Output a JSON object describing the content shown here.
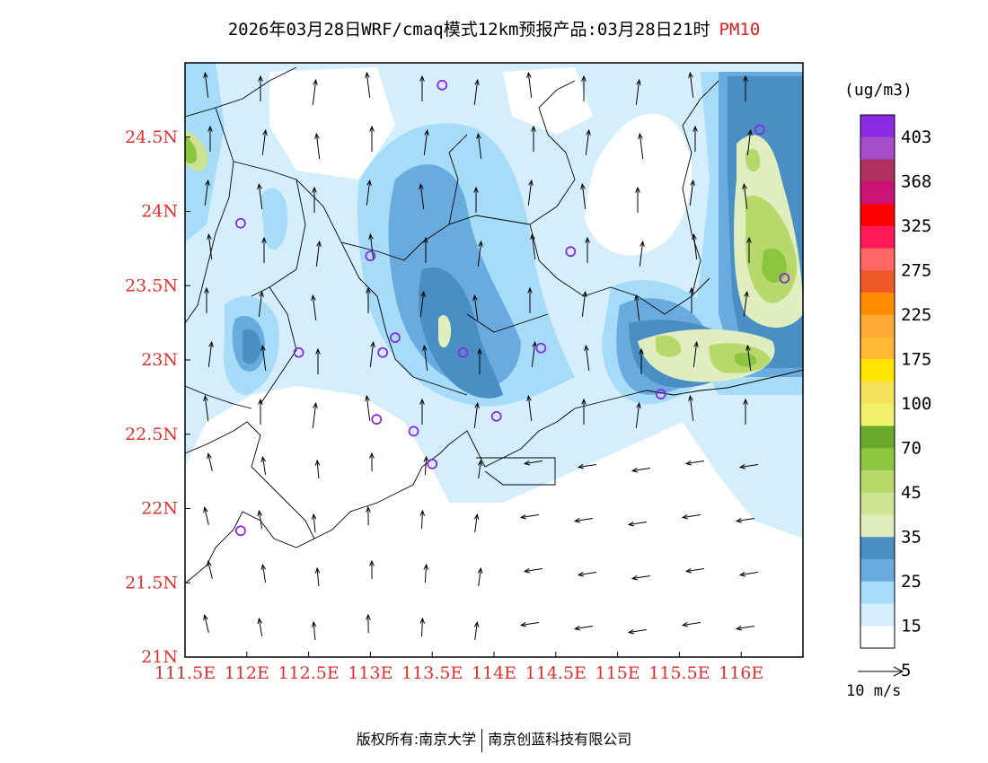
{
  "title": {
    "text": "2026年03月28日WRF/cmaq模式12km预报产品:03月28日21时",
    "pollutant": "PM10"
  },
  "colors": {
    "axis_label": "#e03030",
    "pollutant": "#e02020",
    "boundary": "#000000"
  },
  "map": {
    "x_ticks": [
      "111.5E",
      "112E",
      "112.5E",
      "113E",
      "113.5E",
      "114E",
      "114.5E",
      "115E",
      "115.5E",
      "116E"
    ],
    "y_ticks": [
      "21N",
      "21.5N",
      "22N",
      "22.5N",
      "23N",
      "23.5N",
      "24N",
      "24.5N"
    ],
    "lon_range": [
      111.5,
      116.5
    ],
    "lat_range": [
      21.0,
      25.0
    ],
    "stations": [
      [
        113.58,
        24.85
      ],
      [
        111.95,
        23.92
      ],
      [
        112.42,
        23.05
      ],
      [
        113.0,
        23.7
      ],
      [
        113.2,
        23.15
      ],
      [
        113.1,
        23.05
      ],
      [
        113.75,
        23.05
      ],
      [
        113.05,
        22.6
      ],
      [
        113.35,
        22.52
      ],
      [
        113.5,
        22.3
      ],
      [
        114.02,
        22.62
      ],
      [
        114.38,
        23.08
      ],
      [
        114.62,
        23.73
      ],
      [
        115.35,
        22.77
      ],
      [
        116.15,
        24.55
      ],
      [
        116.35,
        23.55
      ],
      [
        111.95,
        21.85
      ]
    ]
  },
  "colorbar": {
    "unit": "(ug/m3)",
    "labels": [
      "403",
      "368",
      "325",
      "275",
      "225",
      "175",
      "100",
      "70",
      "45",
      "35",
      "25",
      "15",
      "5"
    ],
    "colors": [
      "#8a2be2",
      "#a64dc9",
      "#b03060",
      "#cc1177",
      "#ff0000",
      "#ff1a55",
      "#ff6666",
      "#f05a28",
      "#ff8c00",
      "#ffaa33",
      "#ffb833",
      "#ffe600",
      "#f5e15a",
      "#f0f06a",
      "#6aaa2a",
      "#8cc63f",
      "#b7d86a",
      "#cfe490",
      "#e0edbf",
      "#4a8fc4",
      "#6aabdf",
      "#a6dcf7",
      "#d5eefc",
      "#ffffff"
    ]
  },
  "wind_legend": {
    "label": "10 m/s"
  },
  "footer": {
    "left": "版权所有:南京大学",
    "right": "南京创蓝科技有限公司"
  }
}
